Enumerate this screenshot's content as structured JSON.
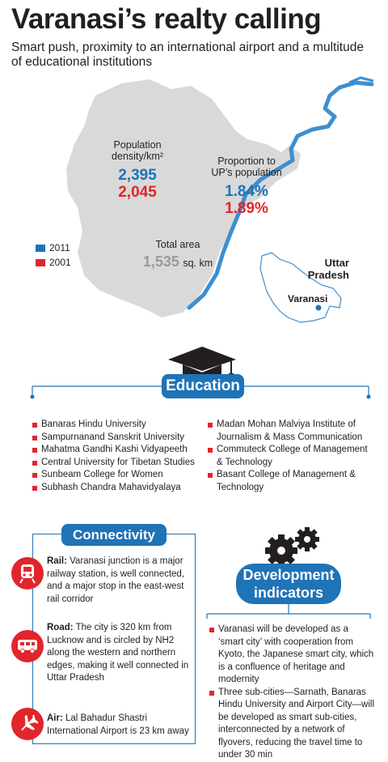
{
  "header": {
    "title": "Varanasi’s realty calling",
    "subtitle": "Smart push, proximity to an international airport and a multitude of educational institutions"
  },
  "stats": {
    "population_density": {
      "label_line1": "Population",
      "label_line2": "density/km²",
      "value_2011": "2,395",
      "value_2001": "2,045"
    },
    "proportion": {
      "label_line1": "Proportion to",
      "label_line2": "UP’s population",
      "value_2011": "1.84%",
      "value_2001": "1.89%"
    },
    "total_area": {
      "label": "Total area",
      "value": "1,535",
      "unit": "sq. km"
    }
  },
  "legend": {
    "item_2011": "2011",
    "item_2001": "2001"
  },
  "state_map": {
    "state_line1": "Uttar",
    "state_line2": "Pradesh",
    "city": "Varanasi"
  },
  "education": {
    "heading": "Education",
    "left_items": [
      "Banaras Hindu University",
      "Sampurnanand Sanskrit University",
      "Mahatma Gandhi Kashi Vidyapeeth",
      "Central University for Tibetan Studies",
      "Sunbeam College for Women",
      "Subhash Chandra Mahavidyalaya"
    ],
    "right_items": [
      "Madan Mohan Malviya Institute of Journalism & Mass Communication",
      "Commuteck College of Management & Technology",
      "Basant College of Management & Technology"
    ]
  },
  "connectivity": {
    "heading": "Connectivity",
    "rail_label": "Rail:",
    "rail_text": " Varanasi junction is a major railway station, is well connected, and a major stop in the east-west rail corridor",
    "road_label": "Road:",
    "road_text": " The city is 320 km from Lucknow and is circled by NH2 along the western and northern edges, making it well connected in Uttar Pradesh",
    "air_label": "Air:",
    "air_text": " Lal Bahadur Shastri International Airport is 23 km away"
  },
  "development": {
    "heading_line1": "Development",
    "heading_line2": "indicators",
    "items": [
      "Varanasi will be developed as a ‘smart city’ with cooperation from Kyoto, the Japanese smart city, which is a confluence of heritage and modernity",
      "Three sub-cities—Sarnath, Banaras Hindu University and Airport City—will be developed as smart sub-cities, interconnected by a network of flyovers, reducing the travel time to under 30 min"
    ]
  },
  "colors": {
    "blue_2011": "#1f73b7",
    "red_2001": "#e0262b",
    "map_grey": "#d9d9d9",
    "river_blue": "#3d8fd1"
  },
  "icons": [
    "graduation-cap-icon",
    "train-icon",
    "bus-icon",
    "airplane-icon",
    "gears-icon"
  ]
}
